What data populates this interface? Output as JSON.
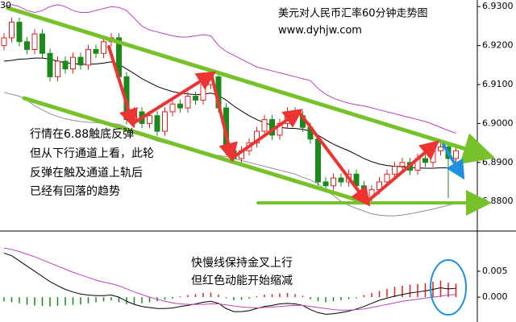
{
  "chart_data": [
    {
      "type": "candlestick",
      "corner_label": "30",
      "title": "美元对人民币汇率60分钟走势图",
      "subtitle": "www.dyhjw.com",
      "annotations": [
        "行情在6.88触底反弹",
        "但从下行通道上看，此轮",
        "反弹在触及通道上轨后",
        "已经有回落的趋势"
      ],
      "ylim": [
        6.8728,
        6.9317
      ],
      "yticks": [
        {
          "value": 6.93,
          "label": "6.9300"
        },
        {
          "value": 6.92,
          "label": "6.9200"
        },
        {
          "value": 6.91,
          "label": "6.9100"
        },
        {
          "value": 6.9,
          "label": "6.9000"
        },
        {
          "value": 6.89,
          "label": "6.8900"
        },
        {
          "value": 6.88,
          "label": "6.8800"
        }
      ],
      "up_color": "#e02020",
      "down_color": "#1a8a1a",
      "open": [
        6.92,
        6.922,
        6.926,
        6.921,
        6.919,
        6.923,
        6.918,
        6.912,
        6.916,
        6.914,
        6.917,
        6.915,
        6.919,
        6.918,
        6.921,
        6.922,
        6.912,
        6.901,
        6.903,
        6.9,
        6.902,
        6.898,
        6.903,
        6.905,
        6.904,
        6.907,
        6.906,
        6.91,
        6.912,
        6.904,
        6.893,
        6.891,
        6.893,
        6.895,
        6.898,
        6.901,
        6.897,
        6.9,
        6.903,
        6.902,
        6.899,
        6.896,
        6.885,
        6.884,
        6.886,
        6.885,
        6.887,
        6.884,
        6.881,
        6.883,
        6.885,
        6.887,
        6.889,
        6.89,
        6.888,
        6.891,
        6.89,
        6.893,
        6.894,
        6.891
      ],
      "high": [
        6.9232,
        6.9272,
        6.9272,
        6.9222,
        6.9242,
        6.9242,
        6.9192,
        6.9172,
        6.9172,
        6.9182,
        6.9182,
        6.9202,
        6.9202,
        6.9222,
        6.9232,
        6.9232,
        6.9132,
        6.9042,
        6.9042,
        6.9032,
        6.9032,
        6.9042,
        6.9062,
        6.9062,
        6.9082,
        6.9082,
        6.9112,
        6.9132,
        6.9132,
        6.9052,
        6.8942,
        6.8942,
        6.8962,
        6.8992,
        6.9022,
        6.9022,
        6.9012,
        6.9042,
        6.9042,
        6.9032,
        6.9002,
        6.8972,
        6.8862,
        6.8872,
        6.8872,
        6.8882,
        6.8882,
        6.8852,
        6.8842,
        6.8862,
        6.8882,
        6.8902,
        6.8912,
        6.8912,
        6.8922,
        6.8922,
        6.8942,
        6.8952,
        6.8952,
        6.8942
      ],
      "low": [
        6.9188,
        6.9208,
        6.9198,
        6.9178,
        6.9178,
        6.9168,
        6.9108,
        6.9108,
        6.9128,
        6.9128,
        6.9138,
        6.9138,
        6.9168,
        6.9168,
        6.9198,
        6.9108,
        6.8998,
        6.8998,
        6.8988,
        6.8988,
        6.8968,
        6.8968,
        6.9018,
        6.9028,
        6.9028,
        6.9048,
        6.9048,
        6.9088,
        6.9028,
        6.8918,
        6.8898,
        6.8898,
        6.8918,
        6.8938,
        6.8968,
        6.8958,
        6.8958,
        6.8988,
        6.9008,
        6.8978,
        6.8948,
        6.8838,
        6.8828,
        6.8828,
        6.8838,
        6.8838,
        6.8828,
        6.8798,
        6.8798,
        6.8818,
        6.8838,
        6.8858,
        6.8878,
        6.8868,
        6.8868,
        6.8888,
        6.8888,
        6.8918,
        6.8808,
        6.8898
      ],
      "close": [
        6.922,
        6.926,
        6.921,
        6.919,
        6.923,
        6.918,
        6.912,
        6.916,
        6.914,
        6.917,
        6.915,
        6.919,
        6.918,
        6.921,
        6.922,
        6.912,
        6.901,
        6.903,
        6.9,
        6.902,
        6.898,
        6.903,
        6.905,
        6.904,
        6.907,
        6.906,
        6.91,
        6.912,
        6.904,
        6.893,
        6.891,
        6.893,
        6.895,
        6.898,
        6.901,
        6.897,
        6.9,
        6.903,
        6.902,
        6.899,
        6.896,
        6.885,
        6.884,
        6.886,
        6.885,
        6.887,
        6.884,
        6.881,
        6.883,
        6.885,
        6.887,
        6.889,
        6.89,
        6.888,
        6.891,
        6.89,
        6.893,
        6.894,
        6.891,
        6.893
      ],
      "lines": [
        {
          "color": "#000000",
          "values": [
            6.916,
            6.9162,
            6.9165,
            6.9166,
            6.9168,
            6.9168,
            6.9165,
            6.916,
            6.9156,
            6.9154,
            6.9152,
            6.9152,
            6.9153,
            6.9155,
            6.9158,
            6.9152,
            6.914,
            6.9128,
            6.9115,
            6.9105,
            6.9095,
            6.9088,
            6.9082,
            6.9078,
            6.9076,
            6.9074,
            6.9075,
            6.9078,
            6.9072,
            6.906,
            6.9045,
            6.9032,
            6.902,
            6.901,
            6.9002,
            6.8995,
            6.899,
            6.8988,
            6.8987,
            6.8985,
            6.898,
            6.897,
            6.8958,
            6.8947,
            6.8938,
            6.893,
            6.892,
            6.891,
            6.8902,
            6.8896,
            6.8892,
            6.889,
            6.8889,
            6.8887,
            6.8886,
            6.8885,
            6.8885,
            6.8886,
            6.8886,
            6.8887
          ]
        },
        {
          "color": "#c040c0",
          "values": [
            6.93,
            6.9305,
            6.93,
            6.929,
            6.9285,
            6.929,
            6.93,
            6.9305,
            6.93,
            6.929,
            6.9285,
            6.9285,
            6.929,
            6.9295,
            6.93,
            6.9298,
            6.929,
            6.927,
            6.925,
            6.924,
            6.9235,
            6.923,
            6.9225,
            6.9222,
            6.9222,
            6.9225,
            6.9228,
            6.9225,
            6.92,
            6.9185,
            6.9175,
            6.9165,
            6.9155,
            6.9145,
            6.914,
            6.9135,
            6.913,
            6.9125,
            6.912,
            6.9115,
            6.911,
            6.909,
            6.9075,
            6.9065,
            6.9058,
            6.9052,
            6.9048,
            6.9045,
            6.904,
            6.9035,
            6.903,
            6.9025,
            6.902,
            6.9015,
            6.901,
            6.9005,
            6.8998,
            6.899,
            6.8982,
            6.8975
          ]
        },
        {
          "color": "#909090",
          "values": [
            6.908,
            6.9075,
            6.907,
            6.906,
            6.9045,
            6.9035,
            6.9025,
            6.9018,
            6.9012,
            6.9008,
            6.9005,
            6.9003,
            6.9002,
            6.9,
            6.9,
            6.8998,
            6.899,
            6.898,
            6.897,
            6.8962,
            6.8955,
            6.895,
            6.8945,
            6.894,
            6.8935,
            6.893,
            6.8925,
            6.892,
            6.8918,
            6.8915,
            6.891,
            6.8905,
            6.89,
            6.8895,
            6.889,
            6.8885,
            6.888,
            6.8875,
            6.887,
            6.8862,
            6.8855,
            6.8845,
            6.883,
            6.8815,
            6.88,
            6.879,
            6.8782,
            6.8775,
            6.8768,
            6.8765,
            6.8763,
            6.8763,
            6.8765,
            6.8768,
            6.8772,
            6.8776,
            6.878,
            6.8785,
            6.879,
            6.8795
          ]
        }
      ]
    },
    {
      "type": "macd",
      "annotations": [
        "快慢线保持金叉上行",
        "但红色动能开始缩减"
      ],
      "ylim": [
        -0.0048,
        0.0123
      ],
      "yticks": [
        0.005,
        {
          "value": 0,
          "label": "0.000"
        }
      ],
      "pos_color": "#e02020",
      "neg_color": "#1a8a1a",
      "values": [
        -0.0008,
        -0.001,
        -0.0012,
        -0.0015,
        -0.0016,
        -0.0017,
        -0.0018,
        -0.0017,
        -0.0016,
        -0.0015,
        -0.0014,
        -0.0012,
        -0.001,
        -0.0008,
        -0.0006,
        -0.001,
        -0.0014,
        -0.0013,
        -0.0012,
        -0.001,
        -0.0008,
        -0.0005,
        -0.0003,
        0.0002,
        0.0004,
        0.0006,
        0.0008,
        0.0009,
        0.0005,
        -0.0002,
        -0.0006,
        -0.0005,
        -0.0003,
        0.0002,
        0.0005,
        0.0006,
        0.0007,
        0.0008,
        0.0006,
        0.0003,
        -0.0004,
        -0.0008,
        -0.001,
        -0.0008,
        -0.0006,
        -0.0004,
        -0.0002,
        0.0004,
        0.0008,
        0.0012,
        0.0016,
        0.002,
        0.0022,
        0.0024,
        0.0025,
        0.0027,
        0.003,
        0.0032,
        0.0028,
        0.0026
      ],
      "lines": [
        {
          "color": "#000000",
          "values": [
            0.0085,
            0.008,
            0.007,
            0.006,
            0.005,
            0.004,
            0.003,
            0.0022,
            0.0015,
            0.001,
            0.0006,
            0.0004,
            0.0003,
            0.0003,
            0.0004,
            0,
            -0.0008,
            -0.0014,
            -0.0018,
            -0.002,
            -0.0022,
            -0.0022,
            -0.0021,
            -0.0018,
            -0.0016,
            -0.0013,
            -0.001,
            -0.0008,
            -0.0012,
            -0.0022,
            -0.0028,
            -0.0028,
            -0.0026,
            -0.0022,
            -0.0018,
            -0.0016,
            -0.0013,
            -0.0012,
            -0.0013,
            -0.0016,
            -0.0024,
            -0.003,
            -0.0033,
            -0.0032,
            -0.003,
            -0.0027,
            -0.0023,
            -0.0018,
            -0.0012,
            -0.0006,
            -0.0002,
            0.0002,
            0.0005,
            0.0008,
            0.001,
            0.0012,
            0.0015,
            0.0018,
            0.0016,
            0.0017
          ]
        },
        {
          "color": "#c040c0",
          "values": [
            0.0095,
            0.0092,
            0.0088,
            0.0083,
            0.0078,
            0.0072,
            0.0066,
            0.006,
            0.0054,
            0.0048,
            0.0043,
            0.0038,
            0.0033,
            0.0029,
            0.0026,
            0.0022,
            0.0016,
            0.001,
            0.0005,
            0,
            -0.0004,
            -0.0008,
            -0.0011,
            -0.0013,
            -0.0014,
            -0.0014,
            -0.0014,
            -0.0013,
            -0.0013,
            -0.0015,
            -0.0017,
            -0.0019,
            -0.002,
            -0.0021,
            -0.002,
            -0.0019,
            -0.0018,
            -0.0017,
            -0.0016,
            -0.0016,
            -0.0018,
            -0.002,
            -0.0022,
            -0.0024,
            -0.0025,
            -0.0025,
            -0.0024,
            -0.0023,
            -0.002,
            -0.0017,
            -0.0014,
            -0.0011,
            -0.0008,
            -0.0006,
            -0.0004,
            -0.0002,
            0,
            0.0002,
            0.0004,
            0.0005
          ]
        }
      ]
    }
  ]
}
